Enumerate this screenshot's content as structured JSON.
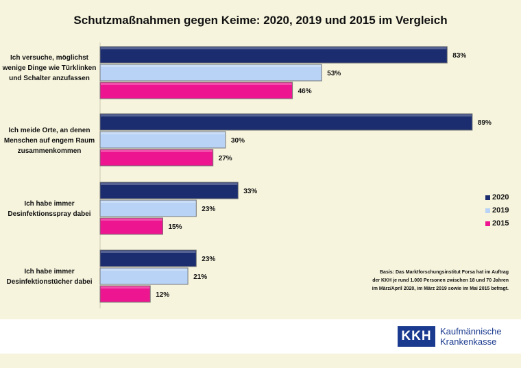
{
  "chart_data": {
    "type": "bar",
    "orientation": "horizontal",
    "title": "Schutzmaßnahmen gegen Keime: 2020, 2019 und 2015 im Vergleich",
    "categories": [
      "Ich versuche, möglichst wenige Dinge wie Türklinken und Schalter anzufassen",
      "Ich meide Orte, an denen Menschen auf engem Raum zusammenkommen",
      "Ich habe immer Desinfektionsspray dabei",
      "Ich habe immer Desinfektionstücher dabei"
    ],
    "series": [
      {
        "name": "2020",
        "color": "#1b2d6e",
        "values": [
          83,
          89,
          33,
          23
        ]
      },
      {
        "name": "2019",
        "color": "#b8d3f5",
        "values": [
          53,
          30,
          23,
          21
        ]
      },
      {
        "name": "2015",
        "color": "#ee1590",
        "values": [
          46,
          27,
          15,
          12
        ]
      }
    ],
    "unit": "%",
    "legend_position": "right",
    "grid": false
  },
  "note": "Basis: Das Marktforschungsinstitut Forsa hat im Auftrag der KKH je rund 1.000 Personen zwischen 18 und 70 Jahren im März/April 2020, im März 2019 sowie im Mai 2015 befragt.",
  "logo": {
    "mark": "KKH",
    "line1": "Kaufmännische",
    "line2": "Krankenkasse"
  }
}
